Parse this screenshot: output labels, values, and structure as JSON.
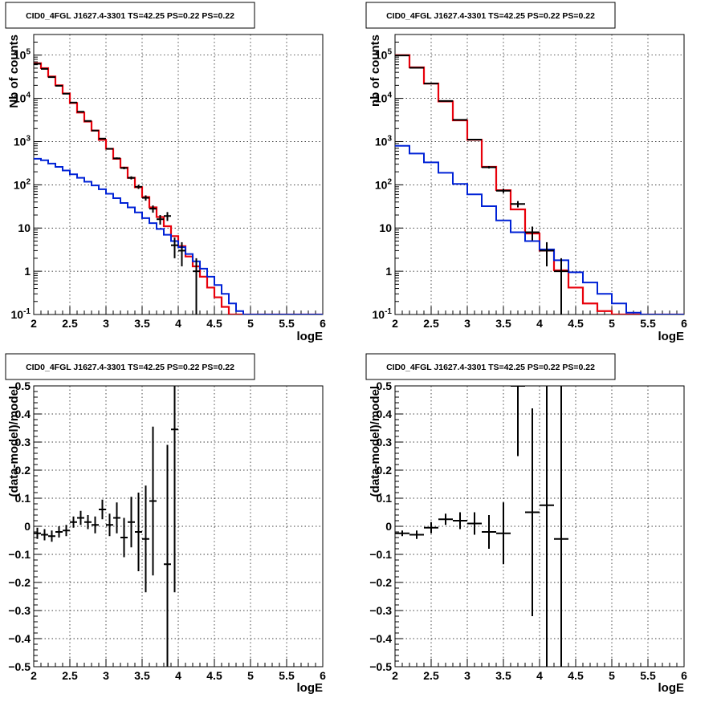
{
  "colors": {
    "data": "#000000",
    "total_model": "#e8000b",
    "source_model": "#0022d6"
  },
  "chart_data": [
    {
      "type": "line",
      "title": "CID0_4FGL J1627.4-3301 TS=42.25 PS=0.22 PS=0.22",
      "xlabel": "logE",
      "ylabel": "Nb of counts",
      "xlim": [
        2,
        6
      ],
      "ylim": [
        0.1,
        300000
      ],
      "yscale": "log",
      "grid": true,
      "x_ticks": [
        "2",
        "2.5",
        "3",
        "3.5",
        "4",
        "4.5",
        "5",
        "5.5",
        "6"
      ],
      "y_ticks": [
        {
          "value": 0.1,
          "base": "10",
          "exp": "-1"
        },
        {
          "value": 1,
          "label": "1"
        },
        {
          "value": 10,
          "label": "10"
        },
        {
          "value": 100,
          "base": "10",
          "exp": "2"
        },
        {
          "value": 1000,
          "base": "10",
          "exp": "3"
        },
        {
          "value": 10000,
          "base": "10",
          "exp": "4"
        },
        {
          "value": 100000,
          "base": "10",
          "exp": "5"
        }
      ],
      "bin_edges": [
        2.0,
        2.1,
        2.2,
        2.3,
        2.4,
        2.5,
        2.6,
        2.7,
        2.8,
        2.9,
        3.0,
        3.1,
        3.2,
        3.3,
        3.4,
        3.5,
        3.6,
        3.7,
        3.8,
        3.9,
        4.0,
        4.1,
        4.2,
        4.3,
        4.4,
        4.5,
        4.6,
        4.7,
        4.8,
        4.9,
        5.0,
        5.1,
        5.2,
        5.3,
        5.4,
        5.5,
        5.6,
        5.7,
        5.8,
        5.9,
        6.0
      ],
      "series": [
        {
          "role": "total_model",
          "style": "step",
          "values": [
            65000,
            50000,
            32000,
            20000,
            13000,
            7800,
            4700,
            2900,
            1800,
            1100,
            680,
            400,
            250,
            145,
            88,
            52,
            30,
            18,
            11,
            6.5,
            3.8,
            2.2,
            1.3,
            0.75,
            0.42,
            0.25,
            0.15,
            0.1,
            0.08,
            0.08,
            0.08,
            0.08,
            0.08,
            0.08,
            0.08,
            0.08,
            0.08,
            0.08,
            0.08,
            0.08
          ]
        },
        {
          "role": "source_model",
          "style": "step",
          "values": [
            400,
            370,
            310,
            260,
            215,
            175,
            145,
            118,
            97,
            79,
            62,
            49,
            38,
            30,
            23,
            17,
            13,
            9.5,
            7,
            5,
            3.6,
            2.5,
            1.7,
            1.15,
            0.75,
            0.48,
            0.3,
            0.18,
            0.12,
            0.09,
            0.08,
            0.08,
            0.08,
            0.08,
            0.08,
            0.08,
            0.08,
            0.08,
            0.08,
            0.08
          ]
        },
        {
          "role": "data",
          "style": "errorbar",
          "points": [
            {
              "x": 2.05,
              "y": 63000,
              "err": 250
            },
            {
              "x": 2.15,
              "y": 48000,
              "err": 220
            },
            {
              "x": 2.25,
              "y": 31000,
              "err": 180
            },
            {
              "x": 2.35,
              "y": 19500,
              "err": 140
            },
            {
              "x": 2.45,
              "y": 12800,
              "err": 110
            },
            {
              "x": 2.55,
              "y": 8000,
              "err": 90
            },
            {
              "x": 2.65,
              "y": 4900,
              "err": 70
            },
            {
              "x": 2.75,
              "y": 3000,
              "err": 55
            },
            {
              "x": 2.85,
              "y": 1800,
              "err": 42
            },
            {
              "x": 2.95,
              "y": 1170,
              "err": 34
            },
            {
              "x": 3.05,
              "y": 680,
              "err": 26
            },
            {
              "x": 3.15,
              "y": 410,
              "err": 20
            },
            {
              "x": 3.25,
              "y": 245,
              "err": 16
            },
            {
              "x": 3.35,
              "y": 145,
              "err": 12
            },
            {
              "x": 3.45,
              "y": 90,
              "err": 9.5
            },
            {
              "x": 3.55,
              "y": 50,
              "err": 7
            },
            {
              "x": 3.65,
              "y": 28,
              "err": 5.3
            },
            {
              "x": 3.75,
              "y": 16,
              "err": 4
            },
            {
              "x": 3.85,
              "y": 19,
              "err": 4.4
            },
            {
              "x": 3.95,
              "y": 4,
              "err": 2
            },
            {
              "x": 4.05,
              "y": 3,
              "err": 1.7
            },
            {
              "x": 4.25,
              "y": 1,
              "err": 1
            }
          ]
        }
      ]
    },
    {
      "type": "line",
      "title": "CID0_4FGL J1627.4-3301 TS=42.25 PS=0.22 PS=0.22",
      "xlabel": "logE",
      "ylabel": "nb of counts",
      "xlim": [
        2,
        6
      ],
      "ylim": [
        0.1,
        300000
      ],
      "yscale": "log",
      "grid": true,
      "x_ticks": [
        "2",
        "2.5",
        "3",
        "3.5",
        "4",
        "4.5",
        "5",
        "5.5",
        "6"
      ],
      "y_ticks": [
        {
          "value": 0.1,
          "base": "10",
          "exp": "-1"
        },
        {
          "value": 1,
          "label": "1"
        },
        {
          "value": 10,
          "label": "10"
        },
        {
          "value": 100,
          "base": "10",
          "exp": "2"
        },
        {
          "value": 1000,
          "base": "10",
          "exp": "3"
        },
        {
          "value": 10000,
          "base": "10",
          "exp": "4"
        },
        {
          "value": 100000,
          "base": "10",
          "exp": "5"
        }
      ],
      "bin_edges": [
        2.0,
        2.2,
        2.4,
        2.6,
        2.8,
        3.0,
        3.2,
        3.4,
        3.6,
        3.8,
        4.0,
        4.2,
        4.4,
        4.6,
        4.8,
        5.0,
        5.2,
        5.4,
        5.6,
        5.8,
        6.0
      ],
      "series": [
        {
          "role": "total_model",
          "style": "step",
          "values": [
            100000,
            52000,
            22000,
            8500,
            3100,
            1100,
            260,
            75,
            27,
            7.5,
            3,
            1.05,
            0.42,
            0.18,
            0.12,
            0.09,
            0.09,
            0.09,
            0.09,
            0.09
          ]
        },
        {
          "role": "source_model",
          "style": "step",
          "values": [
            800,
            530,
            330,
            190,
            105,
            60,
            32,
            15,
            8,
            5,
            3.2,
            1.8,
            0.95,
            0.55,
            0.3,
            0.18,
            0.11,
            0.09,
            0.09,
            0.09
          ]
        },
        {
          "role": "data",
          "style": "errorbar",
          "points": [
            {
              "x": 2.1,
              "y": 98000,
              "err": 310
            },
            {
              "x": 2.3,
              "y": 51000,
              "err": 225
            },
            {
              "x": 2.5,
              "y": 22000,
              "err": 148
            },
            {
              "x": 2.7,
              "y": 8700,
              "err": 93
            },
            {
              "x": 2.9,
              "y": 3180,
              "err": 56
            },
            {
              "x": 3.1,
              "y": 1110,
              "err": 33
            },
            {
              "x": 3.3,
              "y": 255,
              "err": 16
            },
            {
              "x": 3.5,
              "y": 73,
              "err": 8.5
            },
            {
              "x": 3.7,
              "y": 36,
              "err": 6
            },
            {
              "x": 3.9,
              "y": 8,
              "err": 2.8
            },
            {
              "x": 4.1,
              "y": 3,
              "err": 1.7
            },
            {
              "x": 4.3,
              "y": 1,
              "err": 1
            }
          ]
        }
      ]
    },
    {
      "type": "scatter",
      "title": "CID0_4FGL J1627.4-3301 TS=42.25 PS=0.22 PS=0.22",
      "xlabel": "logE",
      "ylabel": "(data-model)/model",
      "xlim": [
        2,
        6
      ],
      "ylim": [
        -0.5,
        0.5
      ],
      "grid": true,
      "x_ticks": [
        "2",
        "2.5",
        "3",
        "3.5",
        "4",
        "4.5",
        "5",
        "5.5",
        "6"
      ],
      "y_ticks": [
        "−0.5",
        "−0.4",
        "−0.3",
        "−0.2",
        "−0.1",
        "0",
        "0.1",
        "0.2",
        "0.3",
        "0.4",
        "0.5"
      ],
      "series": [
        {
          "role": "data",
          "style": "errorbar",
          "xerr": 0.05,
          "points": [
            {
              "x": 2.05,
              "y": -0.025,
              "err": 0.02
            },
            {
              "x": 2.15,
              "y": -0.03,
              "err": 0.02
            },
            {
              "x": 2.25,
              "y": -0.035,
              "err": 0.02
            },
            {
              "x": 2.35,
              "y": -0.02,
              "err": 0.02
            },
            {
              "x": 2.45,
              "y": -0.015,
              "err": 0.02
            },
            {
              "x": 2.55,
              "y": 0.015,
              "err": 0.02
            },
            {
              "x": 2.65,
              "y": 0.03,
              "err": 0.025
            },
            {
              "x": 2.75,
              "y": 0.015,
              "err": 0.025
            },
            {
              "x": 2.85,
              "y": 0.005,
              "err": 0.03
            },
            {
              "x": 2.95,
              "y": 0.06,
              "err": 0.035
            },
            {
              "x": 3.05,
              "y": 0.005,
              "err": 0.04
            },
            {
              "x": 3.15,
              "y": 0.03,
              "err": 0.055
            },
            {
              "x": 3.25,
              "y": -0.04,
              "err": 0.07
            },
            {
              "x": 3.35,
              "y": 0.015,
              "err": 0.09
            },
            {
              "x": 3.45,
              "y": -0.02,
              "err": 0.14
            },
            {
              "x": 3.55,
              "y": -0.045,
              "err": 0.19
            },
            {
              "x": 3.65,
              "y": 0.09,
              "err": 0.265
            },
            {
              "x": 3.85,
              "y": -0.135,
              "err": 0.425
            },
            {
              "x": 3.95,
              "y": 0.345,
              "err": 0.58
            }
          ]
        }
      ]
    },
    {
      "type": "scatter",
      "title": "CID0_4FGL J1627.4-3301 TS=42.25 PS=0.22 PS=0.22",
      "xlabel": "logE",
      "ylabel": "(data-model)/model",
      "xlim": [
        2,
        6
      ],
      "ylim": [
        -0.5,
        0.5
      ],
      "grid": true,
      "x_ticks": [
        "2",
        "2.5",
        "3",
        "3.5",
        "4",
        "4.5",
        "5",
        "5.5",
        "6"
      ],
      "y_ticks": [
        "−0.5",
        "−0.4",
        "−0.3",
        "−0.2",
        "−0.1",
        "0",
        "0.1",
        "0.2",
        "0.3",
        "0.4",
        "0.5"
      ],
      "series": [
        {
          "role": "data",
          "style": "errorbar",
          "xerr": 0.1,
          "points": [
            {
              "x": 2.1,
              "y": -0.025,
              "err": 0.01
            },
            {
              "x": 2.3,
              "y": -0.03,
              "err": 0.015
            },
            {
              "x": 2.5,
              "y": -0.005,
              "err": 0.02
            },
            {
              "x": 2.7,
              "y": 0.025,
              "err": 0.02
            },
            {
              "x": 2.9,
              "y": 0.02,
              "err": 0.03
            },
            {
              "x": 3.1,
              "y": 0.01,
              "err": 0.04
            },
            {
              "x": 3.3,
              "y": -0.02,
              "err": 0.06
            },
            {
              "x": 3.5,
              "y": -0.025,
              "err": 0.11
            },
            {
              "x": 3.7,
              "y": 0.5,
              "err": 0.25
            },
            {
              "x": 3.9,
              "y": 0.05,
              "err": 0.37
            },
            {
              "x": 4.1,
              "y": 0.075,
              "err": 0.62
            },
            {
              "x": 4.3,
              "y": -0.045,
              "err": 0.9
            }
          ]
        }
      ]
    }
  ]
}
